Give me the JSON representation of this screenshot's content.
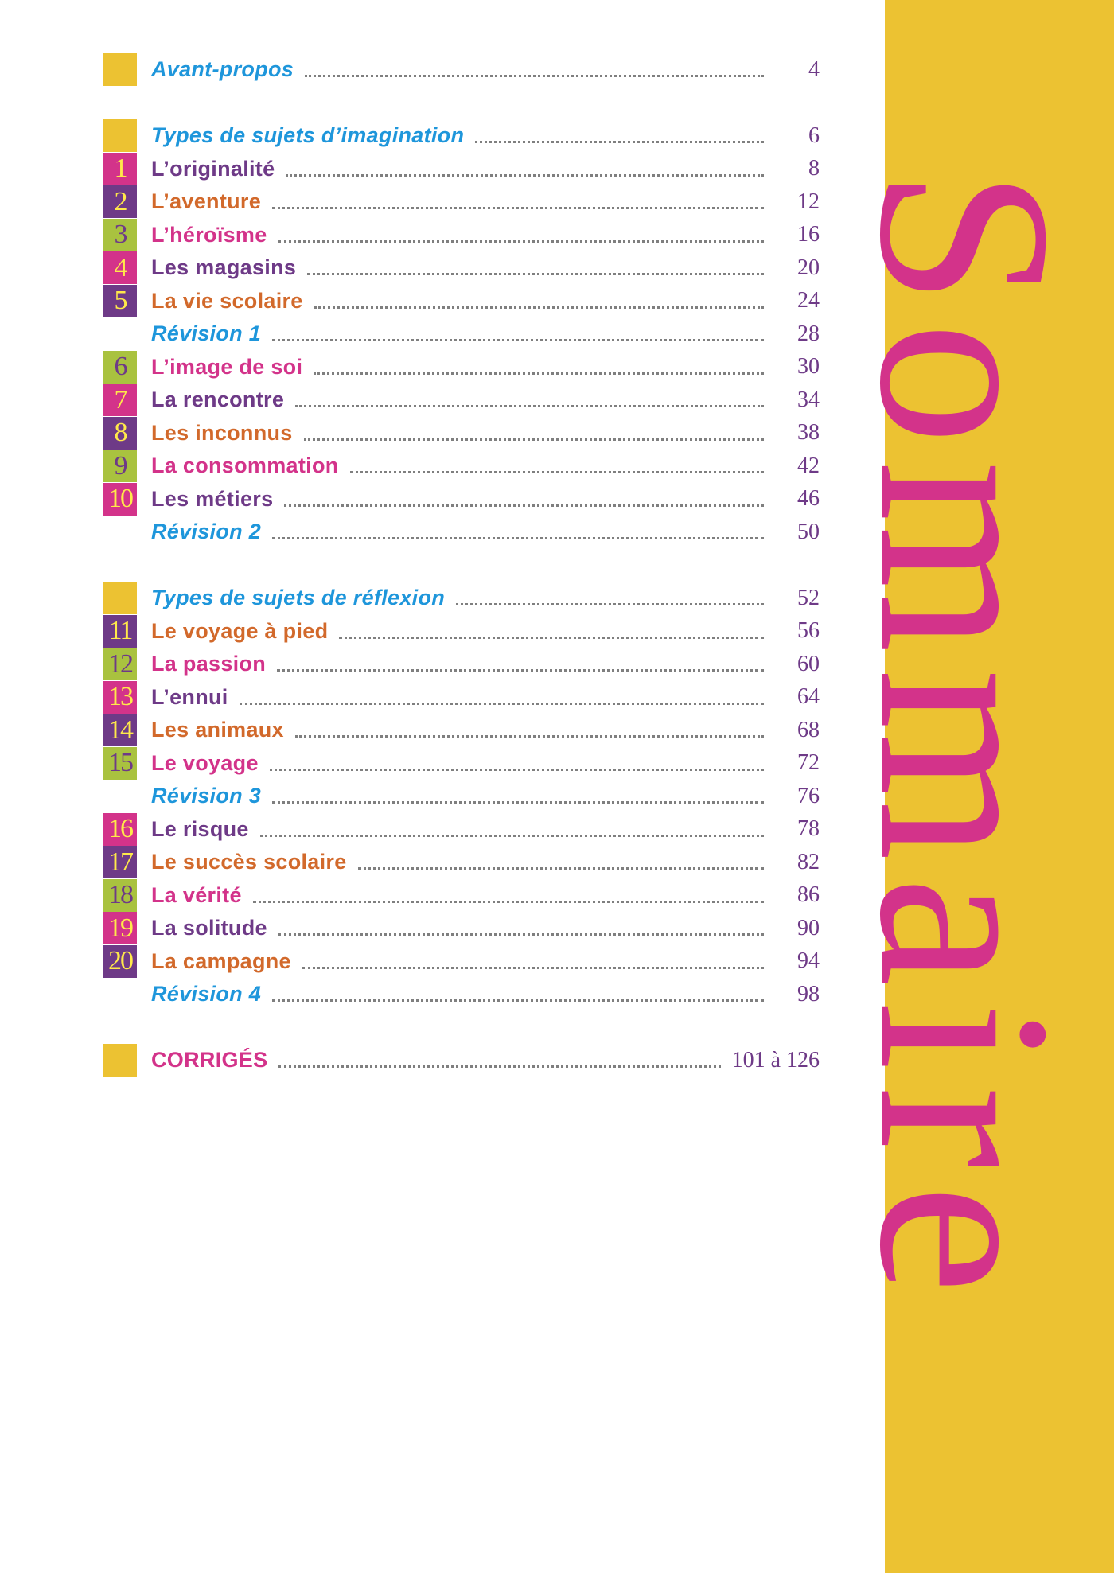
{
  "title": "Sommaire",
  "colors": {
    "yellow": "#ECC232",
    "magenta": "#D3338A",
    "purple": "#6E3A87",
    "green": "#A9C23F",
    "orange": "#D2692B",
    "blue": "#1E96DB"
  },
  "sections": [
    {
      "entries": [
        {
          "num": "",
          "label": "Avant-propos",
          "page": "4",
          "box": "yellow",
          "color": "blue",
          "italic": true
        }
      ]
    },
    {
      "entries": [
        {
          "num": "",
          "label": "Types de sujets d’imagination",
          "page": "6",
          "box": "yellow",
          "color": "blue",
          "italic": true
        },
        {
          "num": "1",
          "label": "L’originalité",
          "page": "8",
          "box": "magenta",
          "color": "purple"
        },
        {
          "num": "2",
          "label": "L’aventure",
          "page": "12",
          "box": "purple",
          "color": "orange"
        },
        {
          "num": "3",
          "label": "L’héroïsme",
          "page": "16",
          "box": "green",
          "color": "magenta"
        },
        {
          "num": "4",
          "label": "Les magasins",
          "page": "20",
          "box": "magenta",
          "color": "purple"
        },
        {
          "num": "5",
          "label": "La vie scolaire",
          "page": "24",
          "box": "purple",
          "color": "orange"
        },
        {
          "num": "",
          "label": "Révision 1",
          "page": "28",
          "box": "none",
          "color": "blue",
          "italic": true
        },
        {
          "num": "6",
          "label": "L’image de soi",
          "page": "30",
          "box": "green",
          "color": "magenta"
        },
        {
          "num": "7",
          "label": "La rencontre",
          "page": "34",
          "box": "magenta",
          "color": "purple"
        },
        {
          "num": "8",
          "label": "Les inconnus",
          "page": "38",
          "box": "purple",
          "color": "orange"
        },
        {
          "num": "9",
          "label": "La consommation",
          "page": "42",
          "box": "green",
          "color": "magenta"
        },
        {
          "num": "10",
          "label": "Les métiers",
          "page": "46",
          "box": "magenta",
          "color": "purple"
        },
        {
          "num": "",
          "label": "Révision 2",
          "page": "50",
          "box": "none",
          "color": "blue",
          "italic": true
        }
      ]
    },
    {
      "entries": [
        {
          "num": "",
          "label": "Types de sujets de réflexion",
          "page": "52",
          "box": "yellow",
          "color": "blue",
          "italic": true
        },
        {
          "num": "11",
          "label": "Le voyage à pied",
          "page": "56",
          "box": "purple",
          "color": "orange"
        },
        {
          "num": "12",
          "label": "La passion",
          "page": "60",
          "box": "green",
          "color": "magenta"
        },
        {
          "num": "13",
          "label": "L’ennui",
          "page": "64",
          "box": "magenta",
          "color": "purple"
        },
        {
          "num": "14",
          "label": "Les animaux",
          "page": "68",
          "box": "purple",
          "color": "orange"
        },
        {
          "num": "15",
          "label": "Le voyage",
          "page": "72",
          "box": "green",
          "color": "magenta"
        },
        {
          "num": "",
          "label": "Révision 3",
          "page": "76",
          "box": "none",
          "color": "blue",
          "italic": true
        },
        {
          "num": "16",
          "label": "Le risque",
          "page": "78",
          "box": "magenta",
          "color": "purple"
        },
        {
          "num": "17",
          "label": "Le succès scolaire",
          "page": "82",
          "box": "purple",
          "color": "orange"
        },
        {
          "num": "18",
          "label": "La vérité",
          "page": "86",
          "box": "green",
          "color": "magenta"
        },
        {
          "num": "19",
          "label": "La solitude",
          "page": "90",
          "box": "magenta",
          "color": "purple"
        },
        {
          "num": "20",
          "label": "La campagne",
          "page": "94",
          "box": "purple",
          "color": "orange"
        },
        {
          "num": "",
          "label": "Révision 4",
          "page": "98",
          "box": "none",
          "color": "blue",
          "italic": true
        }
      ]
    },
    {
      "entries": [
        {
          "num": "",
          "label": "CORRIGÉS",
          "page": "101 à 126",
          "box": "yellow",
          "color": "magenta"
        }
      ]
    }
  ]
}
